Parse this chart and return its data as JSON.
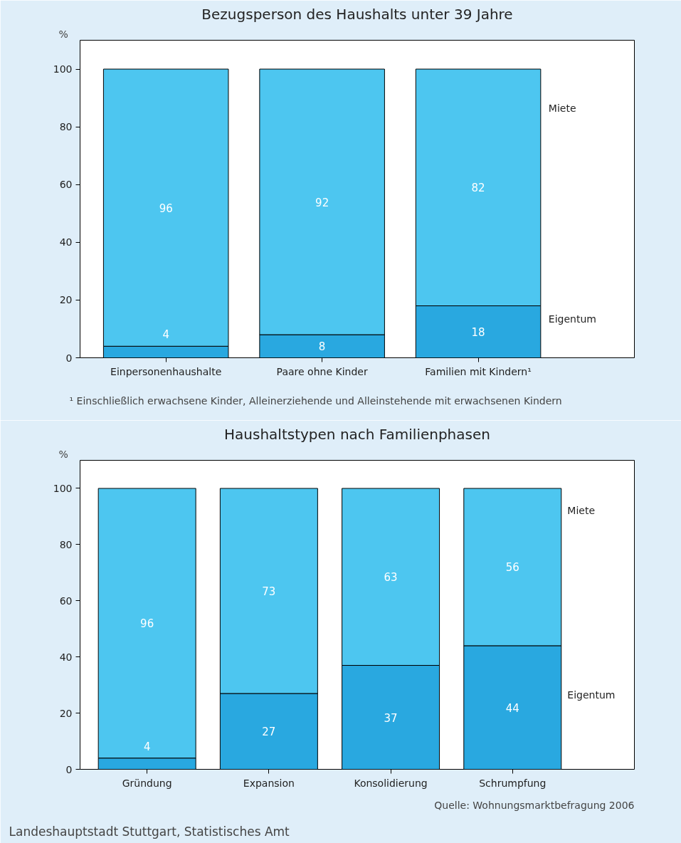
{
  "chart_data": [
    {
      "type": "bar",
      "title": "Bezugsperson des Haushalts unter 39 Jahre",
      "ylabel": "%",
      "stacked": true,
      "data_labels": true,
      "grid": false,
      "categories": [
        "Einpersonenhaushalte",
        "Paare ohne Kinder",
        "Familien mit Kindern¹"
      ],
      "series": [
        {
          "name": "Eigentum",
          "color": "#29a8e0",
          "values": [
            4,
            8,
            18
          ]
        },
        {
          "name": "Miete",
          "color": "#4dc6f0",
          "values": [
            96,
            92,
            82
          ]
        }
      ],
      "ylim": [
        0,
        110
      ],
      "yticks": [
        0,
        20,
        40,
        60,
        80,
        100
      ],
      "annotations": [
        "¹ Einschließlich erwachsene Kinder, Alleinerziehende und Alleinstehende mit erwachsenen Kindern"
      ]
    },
    {
      "type": "bar",
      "title": "Haushaltstypen nach Familienphasen",
      "ylabel": "%",
      "stacked": true,
      "data_labels": true,
      "grid": false,
      "categories": [
        "Gründung",
        "Expansion",
        "Konsolidierung",
        "Schrumpfung"
      ],
      "series": [
        {
          "name": "Eigentum",
          "color": "#29a8e0",
          "values": [
            4,
            27,
            37,
            44
          ]
        },
        {
          "name": "Miete",
          "color": "#4dc6f0",
          "values": [
            96,
            73,
            63,
            56
          ]
        }
      ],
      "ylim": [
        0,
        110
      ],
      "yticks": [
        0,
        20,
        40,
        60,
        80,
        100
      ],
      "annotations": [
        "Quelle: Wohnungsmarktbefragung 2006",
        "Landeshauptstadt Stuttgart, Statistisches Amt"
      ]
    }
  ]
}
